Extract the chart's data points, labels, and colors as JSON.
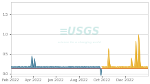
{
  "title": "",
  "background_color": "#ffffff",
  "plot_bg_color": "#ffffff",
  "grid_color": "#cccccc",
  "x_tick_labels": [
    "Feb 2022",
    "Apr 2022",
    "Jun 2022",
    "Aug 2022",
    "Oct 2022",
    "Dec 2022"
  ],
  "x_tick_positions": [
    0,
    59,
    120,
    181,
    243,
    304
  ],
  "series1_color": "#2e6e8e",
  "series2_color": "#e6a817",
  "red_line_color": "#d45f5f",
  "usgs_text_color": "#8ecec8",
  "watermark_alpha": 0.4,
  "total_days": 365,
  "split_day": 242,
  "y_min": -0.05,
  "y_max": 1.8,
  "baseline_y": 0.18,
  "red_line_y": 0.14
}
